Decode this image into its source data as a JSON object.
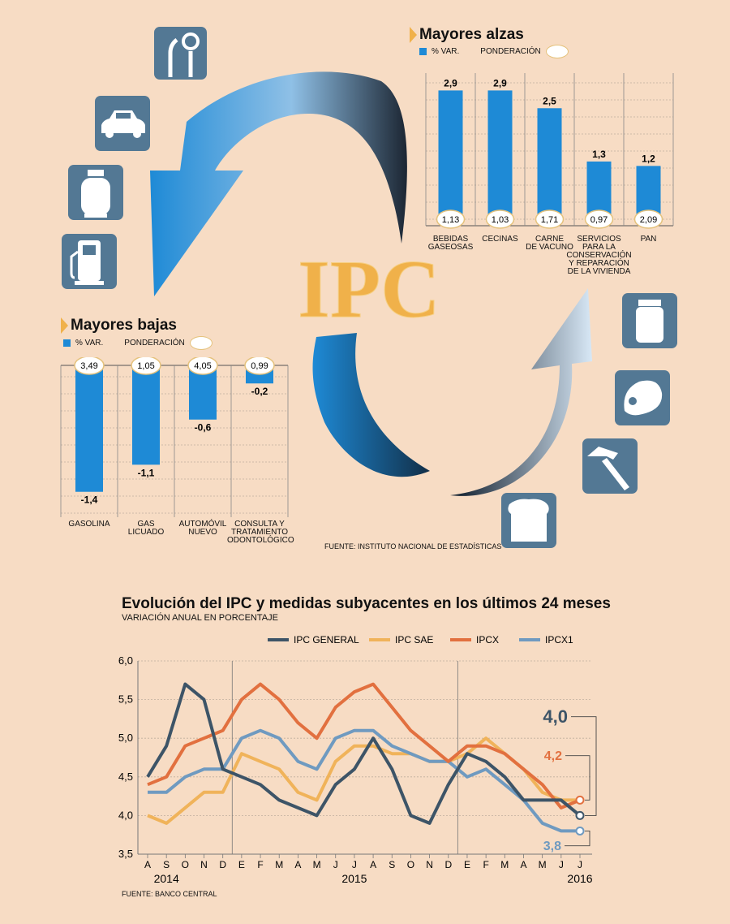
{
  "center_label": "IPC",
  "icons": [
    "dental-tools-icon",
    "car-icon",
    "gas-cylinder-icon",
    "gas-pump-icon",
    "jar-icon",
    "meat-icon",
    "hammer-icon",
    "bread-icon"
  ],
  "alzas": {
    "title": "Mayores alzas",
    "legend_var": "% VAR.",
    "legend_pond": "PONDERACIÓN"
  },
  "bajas": {
    "title": "Mayores bajas",
    "legend_var": "% VAR.",
    "legend_pond": "PONDERACIÓN"
  },
  "source_top": "FUENTE: INSTITUTO NACIONAL DE ESTADÍSTICAS",
  "line_chart": {
    "title": "Evolución del IPC y medidas subyacentes en los últimos 24 meses",
    "subtitle": "VARIACIÓN ANUAL EN PORCENTAJE",
    "source": "FUENTE: BANCO CENTRAL",
    "end_labels": {
      "ipc_general": "4,0",
      "ipcx": "4,2",
      "ipcx1": "3,8"
    }
  },
  "colors": {
    "bar": "#1e8ad6",
    "ipc_general": "#3d5467",
    "ipc_sae": "#f0b35a",
    "ipcx": "#e2703f",
    "ipcx1": "#6f9ac0",
    "background": "#f7dcc4",
    "icon_box": "#537894"
  },
  "chart_data": [
    {
      "type": "bar",
      "title": "Mayores alzas",
      "categories": [
        "BEBIDAS GASEOSAS",
        "CECINAS",
        "CARNE DE VACUNO",
        "SERVICIOS PARA LA CONSERVACIÓN Y REPARACIÓN DE LA VIVIENDA",
        "PAN"
      ],
      "series": [
        {
          "name": "% VAR.",
          "values": [
            2.9,
            2.9,
            2.5,
            1.3,
            1.2
          ]
        },
        {
          "name": "PONDERACIÓN",
          "values": [
            1.13,
            1.03,
            1.71,
            0.97,
            2.09
          ]
        }
      ],
      "value_labels": [
        "2,9",
        "2,9",
        "2,5",
        "1,3",
        "1,2"
      ],
      "weight_labels": [
        "1,13",
        "1,03",
        "1,71",
        "0,97",
        "2,09"
      ],
      "ylim": [
        0,
        3.2
      ]
    },
    {
      "type": "bar",
      "title": "Mayores bajas",
      "categories": [
        "GASOLINA",
        "GAS LICUADO",
        "AUTOMÓVIL NUEVO",
        "CONSULTA Y TRATAMIENTO ODONTOLÓGICO"
      ],
      "series": [
        {
          "name": "% VAR.",
          "values": [
            -1.4,
            -1.1,
            -0.6,
            -0.2
          ]
        },
        {
          "name": "PONDERACIÓN",
          "values": [
            3.49,
            1.05,
            4.05,
            0.99
          ]
        }
      ],
      "value_labels": [
        "-1,4",
        "-1,1",
        "-0,6",
        "-0,2"
      ],
      "weight_labels": [
        "3,49",
        "1,05",
        "4,05",
        "0,99"
      ],
      "ylim": [
        -1.5,
        0
      ]
    },
    {
      "type": "line",
      "title": "Evolución del IPC y medidas subyacentes en los últimos 24 meses",
      "subtitle": "VARIACIÓN ANUAL EN PORCENTAJE",
      "x": [
        "A",
        "S",
        "O",
        "N",
        "D",
        "E",
        "F",
        "M",
        "A",
        "M",
        "J",
        "J",
        "A",
        "S",
        "O",
        "N",
        "D",
        "E",
        "F",
        "M",
        "A",
        "M",
        "J",
        "J"
      ],
      "year_labels": [
        {
          "label": "2014",
          "at": 1
        },
        {
          "label": "2015",
          "at": 11
        },
        {
          "label": "2016",
          "at": 23
        }
      ],
      "ylim": [
        3.5,
        6.0
      ],
      "yticks": [
        "3,5",
        "4,0",
        "4,5",
        "5,0",
        "5,5",
        "6,0"
      ],
      "ytick_values": [
        3.5,
        4.0,
        4.5,
        5.0,
        5.5,
        6.0
      ],
      "legend_position": "top",
      "grid": true,
      "series": [
        {
          "name": "IPC GENERAL",
          "color": "#3d5467",
          "values": [
            4.5,
            4.9,
            5.7,
            5.5,
            4.6,
            4.5,
            4.4,
            4.2,
            4.1,
            4.0,
            4.4,
            4.6,
            5.0,
            4.6,
            4.0,
            3.9,
            4.4,
            4.8,
            4.7,
            4.5,
            4.2,
            4.2,
            4.2,
            4.0
          ]
        },
        {
          "name": "IPC SAE",
          "color": "#f0b35a",
          "values": [
            4.0,
            3.9,
            4.1,
            4.3,
            4.3,
            4.8,
            4.7,
            4.6,
            4.3,
            4.2,
            4.7,
            4.9,
            4.9,
            4.8,
            4.8,
            4.7,
            4.7,
            4.8,
            5.0,
            4.8,
            4.6,
            4.3,
            4.2,
            4.2
          ]
        },
        {
          "name": "IPCX",
          "color": "#e2703f",
          "values": [
            4.4,
            4.5,
            4.9,
            5.0,
            5.1,
            5.5,
            5.7,
            5.5,
            5.2,
            5.0,
            5.4,
            5.6,
            5.7,
            5.4,
            5.1,
            4.9,
            4.7,
            4.9,
            4.9,
            4.8,
            4.6,
            4.4,
            4.1,
            4.2
          ]
        },
        {
          "name": "IPCX1",
          "color": "#6f9ac0",
          "values": [
            4.3,
            4.3,
            4.5,
            4.6,
            4.6,
            5.0,
            5.1,
            5.0,
            4.7,
            4.6,
            5.0,
            5.1,
            5.1,
            4.9,
            4.8,
            4.7,
            4.7,
            4.5,
            4.6,
            4.4,
            4.2,
            3.9,
            3.8,
            3.8
          ]
        }
      ]
    }
  ]
}
